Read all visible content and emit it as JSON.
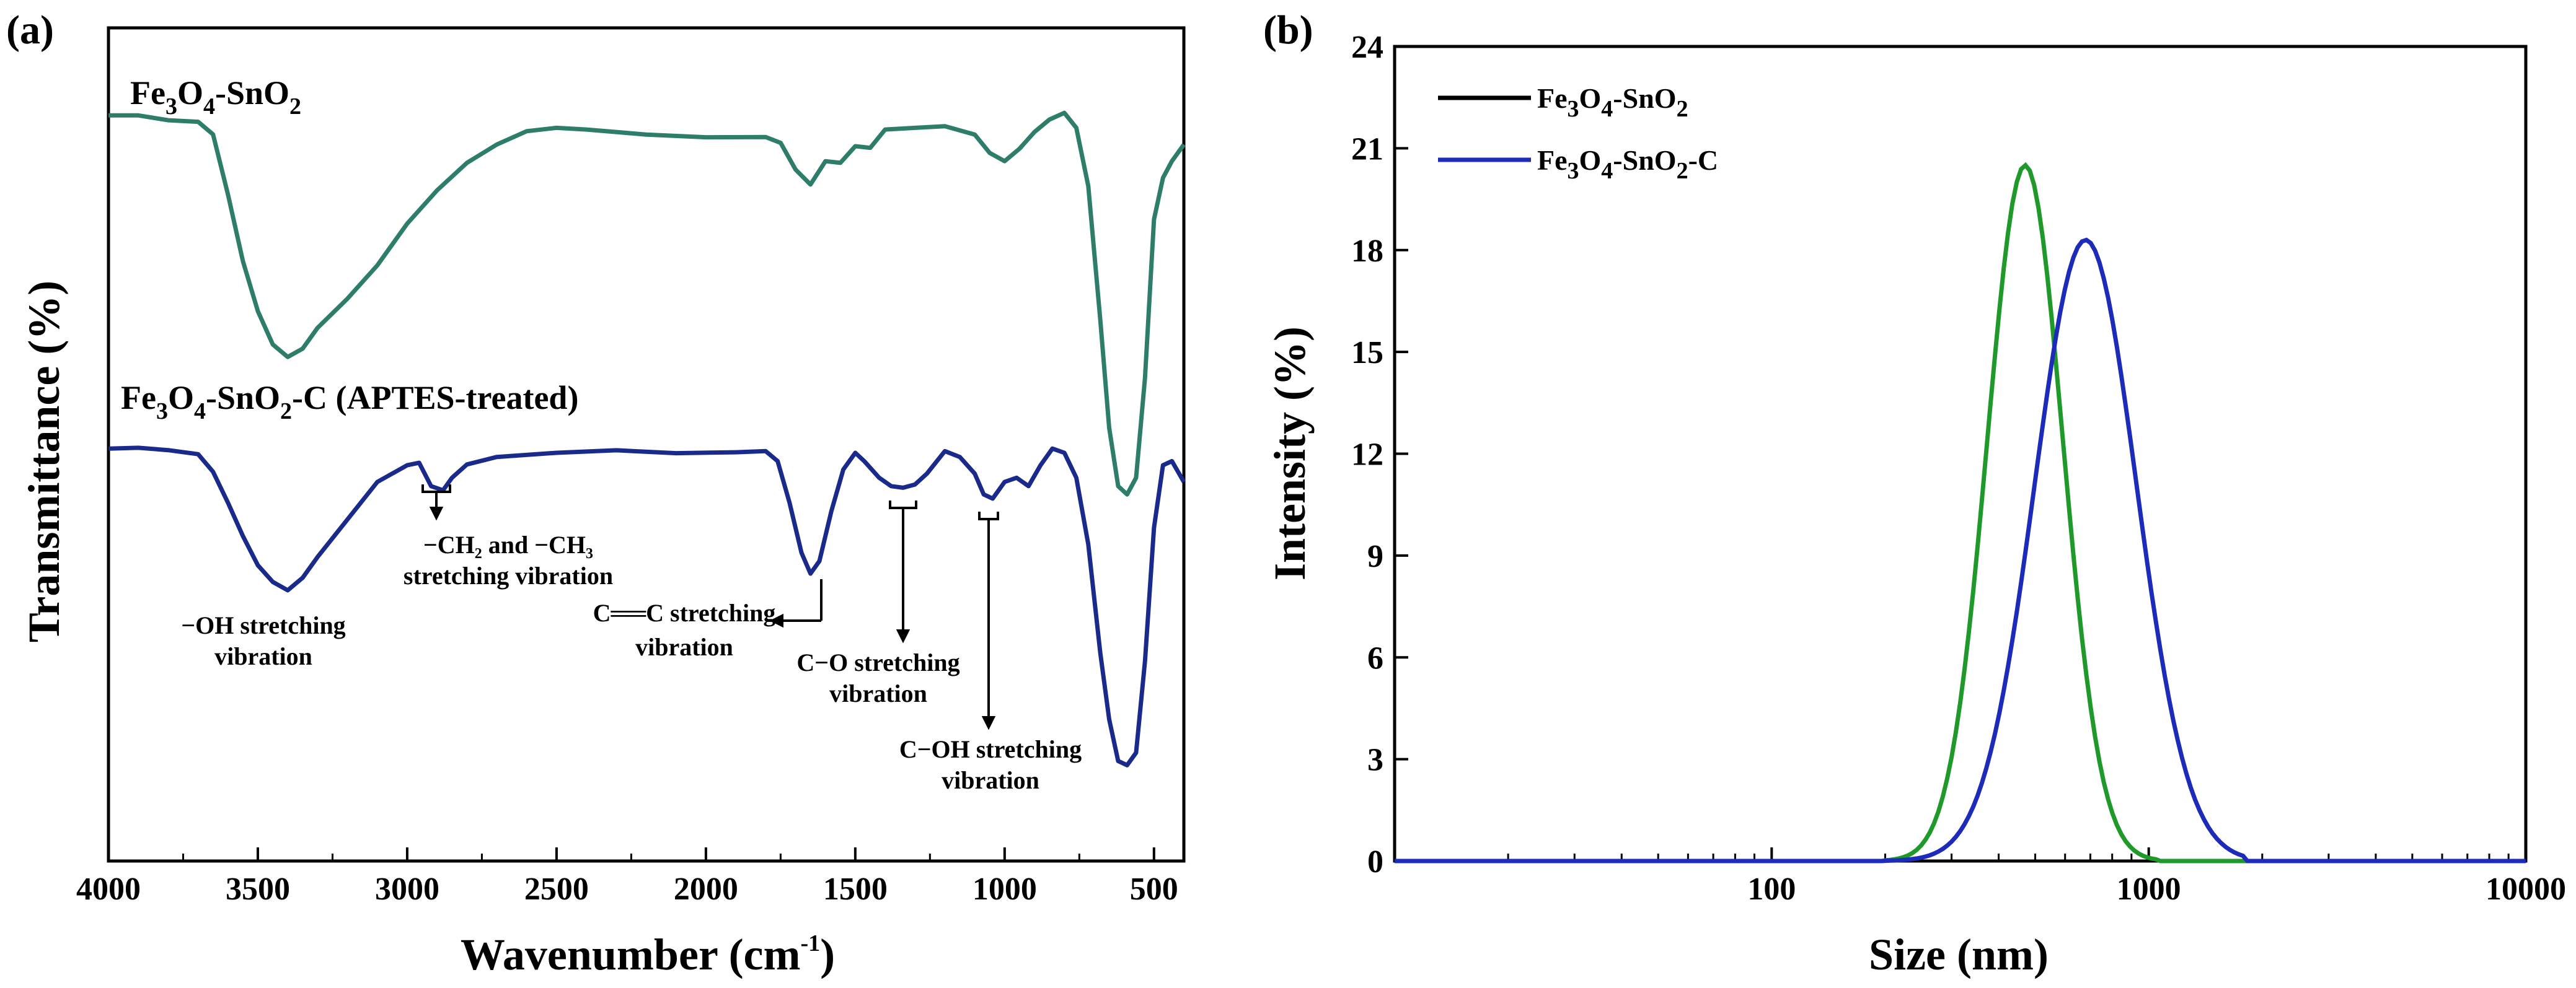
{
  "panel_a": {
    "label": "(a)",
    "series": [
      {
        "text": "Fe",
        "sub1": "3",
        "mid": "O",
        "sub2": "4",
        "rest": "-SnO",
        "sub3": "2",
        "tail": ""
      },
      {
        "text": "Fe",
        "sub1": "3",
        "mid": "O",
        "sub2": "4",
        "rest": "-SnO",
        "sub3": "2",
        "tail": "-C (APTES-treated)"
      }
    ],
    "annotations": {
      "oh": [
        "−OH stretching",
        "vibration"
      ],
      "ch": [
        "−CH₂ and −CH₃",
        "stretching vibration"
      ],
      "cc": [
        "C══C stretching",
        "vibration"
      ],
      "co": [
        "C−O stretching",
        "vibration"
      ],
      "coh": [
        "C−OH stretching",
        "vibration"
      ]
    }
  },
  "panel_b": {
    "label": "(b)",
    "legend": [
      {
        "text": "Fe",
        "sub1": "3",
        "mid": "O",
        "sub2": "4",
        "rest": "-SnO",
        "sub3": "2",
        "tail": ""
      },
      {
        "text": "Fe",
        "sub1": "3",
        "mid": "O",
        "sub2": "4",
        "rest": "-SnO",
        "sub3": "2",
        "tail": "-C"
      }
    ]
  },
  "colors": {
    "ftir_top": "#2e7d6b",
    "ftir_bottom": "#1a2a8a",
    "dls_green": "#1f9a2a",
    "dls_blue": "#1c2bb8"
  },
  "chart_data": [
    {
      "type": "line",
      "title": "",
      "xlabel": "Wavenumber (cm",
      "xlabel_sup": "-1",
      "xlabel_close": ")",
      "ylabel": "Transmittance (%)",
      "xlim": [
        4000,
        400
      ],
      "x_ticks": [
        4000,
        3500,
        3000,
        2500,
        2000,
        1500,
        1000,
        500
      ],
      "ylim": [
        0,
        100
      ],
      "y_ticks_shown": false,
      "series": [
        {
          "name": "Fe3O4-SnO2",
          "x": [
            4000,
            3900,
            3800,
            3700,
            3650,
            3600,
            3550,
            3500,
            3450,
            3400,
            3350,
            3300,
            3200,
            3100,
            3000,
            2900,
            2800,
            2700,
            2600,
            2500,
            2400,
            2200,
            2000,
            1800,
            1750,
            1700,
            1650,
            1600,
            1550,
            1500,
            1450,
            1400,
            1300,
            1200,
            1100,
            1050,
            1000,
            950,
            900,
            850,
            800,
            760,
            720,
            680,
            650,
            620,
            590,
            560,
            530,
            500,
            470,
            440,
            400
          ],
          "values": [
            89.5,
            89.2,
            88.6,
            88.7,
            87.5,
            80.0,
            72.0,
            66.0,
            62.0,
            60.5,
            61.5,
            64.0,
            67.5,
            71.5,
            76.5,
            80.5,
            83.8,
            86.0,
            87.6,
            88.0,
            87.8,
            87.2,
            87.0,
            86.9,
            86.2,
            83.0,
            81.2,
            84.0,
            83.8,
            85.8,
            85.6,
            87.8,
            88.0,
            88.2,
            87.2,
            85.0,
            84.0,
            85.5,
            87.5,
            89.0,
            89.8,
            88.0,
            81.0,
            65.0,
            52.0,
            45.0,
            44.0,
            46.0,
            58.0,
            77.0,
            82.0,
            84.0,
            86.0
          ]
        },
        {
          "name": "Fe3O4-SnO2-C (APTES-treated)",
          "x": [
            4000,
            3900,
            3800,
            3700,
            3650,
            3600,
            3550,
            3500,
            3450,
            3400,
            3350,
            3300,
            3200,
            3100,
            3000,
            2960,
            2920,
            2880,
            2850,
            2800,
            2700,
            2500,
            2300,
            2100,
            1900,
            1800,
            1760,
            1720,
            1680,
            1650,
            1620,
            1580,
            1540,
            1500,
            1470,
            1420,
            1380,
            1340,
            1300,
            1260,
            1200,
            1150,
            1100,
            1070,
            1040,
            1000,
            960,
            920,
            880,
            840,
            800,
            760,
            720,
            680,
            650,
            620,
            590,
            560,
            530,
            500,
            470,
            440,
            400
          ],
          "values": [
            49.5,
            49.3,
            49.0,
            48.8,
            47.0,
            43.0,
            39.0,
            35.5,
            33.5,
            32.5,
            34.0,
            36.5,
            41.0,
            45.5,
            47.5,
            47.8,
            45.0,
            44.5,
            46.0,
            47.6,
            48.5,
            49.0,
            49.3,
            49.3,
            49.3,
            49.2,
            48.0,
            43.0,
            37.0,
            34.5,
            36.0,
            42.0,
            47.0,
            49.0,
            48.0,
            46.0,
            45.0,
            44.8,
            45.2,
            46.5,
            49.2,
            48.5,
            46.5,
            44.0,
            43.5,
            45.5,
            46.0,
            45.0,
            47.5,
            49.5,
            49.0,
            46.0,
            38.0,
            25.0,
            17.0,
            12.0,
            11.5,
            13.0,
            24.0,
            40.0,
            47.5,
            48.0,
            45.5
          ]
        }
      ]
    },
    {
      "type": "line",
      "title": "",
      "xlabel": "Size (nm)",
      "ylabel": "Intensity (%)",
      "x_scale": "log",
      "xlim": [
        10,
        10000
      ],
      "x_tick_labels": [
        "100",
        "1000",
        "10000"
      ],
      "x_tick_values": [
        100,
        1000,
        10000
      ],
      "ylim": [
        0,
        24
      ],
      "y_ticks": [
        0,
        3,
        6,
        9,
        12,
        15,
        18,
        21,
        24
      ],
      "legend_position": "top-left",
      "series": [
        {
          "name": "Fe3O4-SnO2",
          "peak_x": 470,
          "peak_y": 20.5,
          "sigma_log10": 0.1,
          "range": [
            200,
            1050
          ]
        },
        {
          "name": "Fe3O4-SnO2-C",
          "peak_x": 680,
          "peak_y": 18.3,
          "sigma_log10": 0.135,
          "range": [
            200,
            1800
          ]
        }
      ]
    }
  ]
}
